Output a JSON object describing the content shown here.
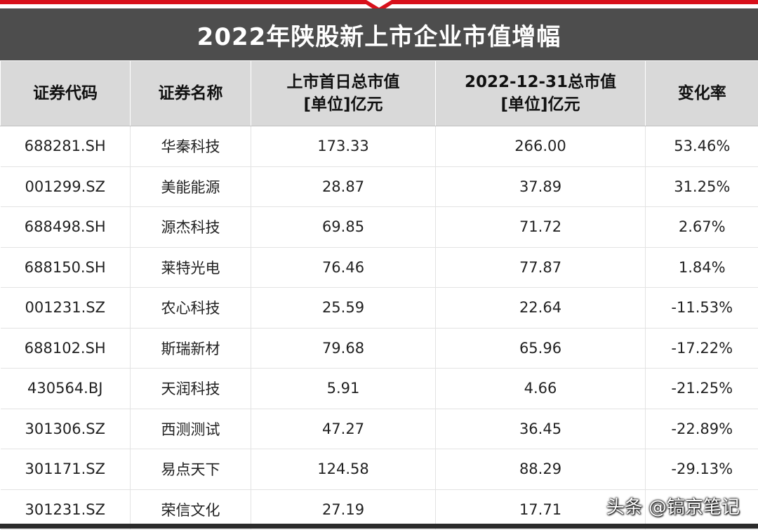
{
  "title": "2022年陕股新上市企业市值增幅",
  "headers": {
    "code": "证券代码",
    "name": "证券名称",
    "first_day_line1": "上市首日总市值",
    "first_day_line2": "[单位]亿元",
    "year_end_line1": "2022-12-31总市值",
    "year_end_line2": "[单位]亿元",
    "change": "变化率"
  },
  "rows": [
    {
      "code": "688281.SH",
      "name": "华秦科技",
      "first_day": "173.33",
      "year_end": "266.00",
      "change": "53.46%"
    },
    {
      "code": "001299.SZ",
      "name": "美能能源",
      "first_day": "28.87",
      "year_end": "37.89",
      "change": "31.25%"
    },
    {
      "code": "688498.SH",
      "name": "源杰科技",
      "first_day": "69.85",
      "year_end": "71.72",
      "change": "2.67%"
    },
    {
      "code": "688150.SH",
      "name": "莱特光电",
      "first_day": "76.46",
      "year_end": "77.87",
      "change": "1.84%"
    },
    {
      "code": "001231.SZ",
      "name": "农心科技",
      "first_day": "25.59",
      "year_end": "22.64",
      "change": "-11.53%"
    },
    {
      "code": "688102.SH",
      "name": "斯瑞新材",
      "first_day": "79.68",
      "year_end": "65.96",
      "change": "-17.22%"
    },
    {
      "code": "430564.BJ",
      "name": "天润科技",
      "first_day": "5.91",
      "year_end": "4.66",
      "change": "-21.25%"
    },
    {
      "code": "301306.SZ",
      "name": "西测测试",
      "first_day": "47.27",
      "year_end": "36.45",
      "change": "-22.89%"
    },
    {
      "code": "301171.SZ",
      "name": "易点天下",
      "first_day": "124.58",
      "year_end": "88.29",
      "change": "-29.13%"
    },
    {
      "code": "301231.SZ",
      "name": "荣信文化",
      "first_day": "27.19",
      "year_end": "17.71",
      "change": ""
    }
  ],
  "watermark": "头条 @镐京笔记"
}
